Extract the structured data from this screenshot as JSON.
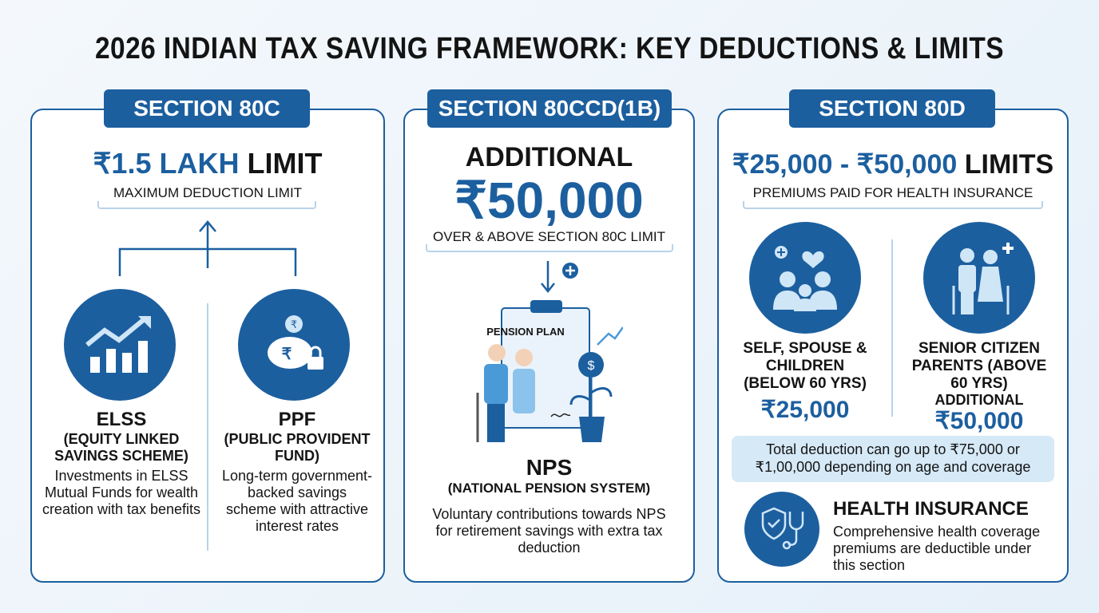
{
  "title": "2026 INDIAN TAX SAVING FRAMEWORK: KEY DEDUCTIONS & LIMITS",
  "colors": {
    "primary": "#1c5f9f",
    "light": "#d6e9f7"
  },
  "sec80c": {
    "label": "SECTION 80C",
    "limit_amount": "₹1.5 LAKH",
    "limit_word": "LIMIT",
    "limit_sub": "MAXIMUM DEDUCTION LIMIT",
    "items": [
      {
        "icon": "growth-chart-icon",
        "title": "ELSS",
        "subtitle": "(EQUITY LINKED SAVINGS SCHEME)",
        "desc": "Investments in ELSS Mutual Funds for wealth creation with tax benefits"
      },
      {
        "icon": "piggy-bank-icon",
        "title": "PPF",
        "subtitle": "(PUBLIC PROVIDENT FUND)",
        "desc": "Long-term government-backed savings scheme with attractive interest rates"
      }
    ]
  },
  "sec80ccd": {
    "label": "SECTION 80CCD(1B)",
    "additional": "ADDITIONAL",
    "amount": "₹50,000",
    "sub": "OVER & ABOVE SECTION 80C LIMIT",
    "plan_text": "PENSION PLAN",
    "title": "NPS",
    "subtitle": "(NATIONAL PENSION SYSTEM)",
    "desc": "Voluntary contributions towards NPS for retirement savings with extra tax deduction"
  },
  "sec80d": {
    "label": "SECTION 80D",
    "limit_amount": "₹25,000 - ₹50,000",
    "limit_word": "LIMITS",
    "limit_sub": "PREMIUMS PAID FOR HEALTH INSURANCE",
    "groups": [
      {
        "icon": "family-icon",
        "label": "SELF, SPOUSE & CHILDREN (BELOW 60 YRS)",
        "extra": "",
        "amount": "₹25,000"
      },
      {
        "icon": "senior-citizens-icon",
        "label": "SENIOR CITIZEN PARENTS (ABOVE 60 YRS)",
        "extra": "ADDITIONAL",
        "amount": "₹50,000"
      }
    ],
    "note": "Total deduction can go up to ₹75,000 or ₹1,00,000 depending on age and coverage",
    "hi_title": "HEALTH INSURANCE",
    "hi_desc": "Comprehensive health coverage premiums are deductible under this section"
  }
}
